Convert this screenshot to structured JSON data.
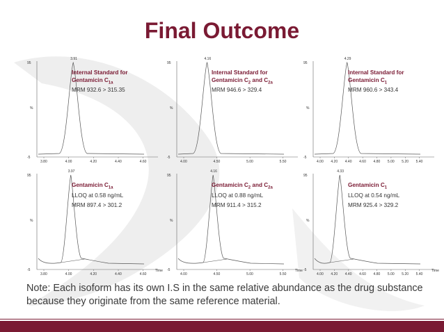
{
  "title": "Final Outcome",
  "colors": {
    "title": "#7a1a33",
    "footer": "#7a1a33",
    "trace": "#555555",
    "text": "#3a3a3a"
  },
  "watermark_icon": "swoosh-logo-icon",
  "panels": [
    {
      "peak_label": "3.91",
      "cap_main": "Internal Standard for",
      "cap_second_pre": "Gentamicin C",
      "cap_second_sub": "1a",
      "cap_second_mid": "",
      "cap_second_sub2": "",
      "detail": "MRM 932.6 > 315.35",
      "y_top": "95",
      "y_axis": "%",
      "y_bottom": "-5",
      "x_ticks": [
        "3.80",
        "4.00",
        "4.20",
        "4.40",
        "4.60"
      ],
      "x_label": ""
    },
    {
      "peak_label": "4.16",
      "cap_main": "Internal Standard for",
      "cap_second_pre": "Gentamicin C",
      "cap_second_sub": "2",
      "cap_second_mid": " and C",
      "cap_second_sub2": "2a",
      "detail": "MRM 946.6 > 329.4",
      "y_top": "95",
      "y_axis": "%",
      "y_bottom": "-5",
      "x_ticks": [
        "4.00",
        "4.50",
        "5.00",
        "5.50"
      ],
      "x_label": ""
    },
    {
      "peak_label": "4.29",
      "cap_main": "Internal Standard for",
      "cap_second_pre": "Gentamicin C",
      "cap_second_sub": "1",
      "cap_second_mid": "",
      "cap_second_sub2": "",
      "detail": "MRM 960.6 > 343.4",
      "y_top": "95",
      "y_axis": "%",
      "y_bottom": "-5",
      "x_ticks": [
        "4.00",
        "4.20",
        "4.40",
        "4.60",
        "4.80",
        "5.00",
        "5.20",
        "5.40"
      ],
      "x_label": ""
    },
    {
      "peak_label": "3.97",
      "cap_main": "",
      "cap_second_pre": "Gentamicin C",
      "cap_second_sub": "1a",
      "cap_second_mid": "",
      "cap_second_sub2": "",
      "detail": "LLOQ at 0.58 ng/mL",
      "detail2": "MRM 897.4 > 301.2",
      "y_top": "95",
      "y_axis": "%",
      "y_bottom": "-5",
      "x_ticks": [
        "3.80",
        "4.00",
        "4.20",
        "4.40",
        "4.60"
      ],
      "x_label": "Time"
    },
    {
      "peak_label": "4.16",
      "cap_main": "",
      "cap_second_pre": "Gentamicin C",
      "cap_second_sub": "2",
      "cap_second_mid": " and C",
      "cap_second_sub2": "2a",
      "detail": "LLOQ at 0.88 ng/mL",
      "detail2": "MRM 911.4 > 315.2",
      "y_top": "95",
      "y_axis": "%",
      "y_bottom": "-5",
      "x_ticks": [
        "4.00",
        "4.50",
        "5.00",
        "5.50"
      ],
      "x_label": "Time"
    },
    {
      "peak_label": "4.33",
      "cap_main": "",
      "cap_second_pre": "Gentamicin C",
      "cap_second_sub": "1",
      "cap_second_mid": "",
      "cap_second_sub2": "",
      "detail": "LLOQ at 0.54 ng/mL",
      "detail2": "MRM 925.4 > 329.2",
      "y_top": "95",
      "y_axis": "%",
      "y_bottom": "-5",
      "x_ticks": [
        "4.00",
        "4.20",
        "4.40",
        "4.60",
        "4.80",
        "5.00",
        "5.20",
        "5.40"
      ],
      "x_label": "Time"
    }
  ],
  "note": "Note: Each isoform has its own I.S in the same relative abundance as the drug substance because they originate from the same reference material."
}
